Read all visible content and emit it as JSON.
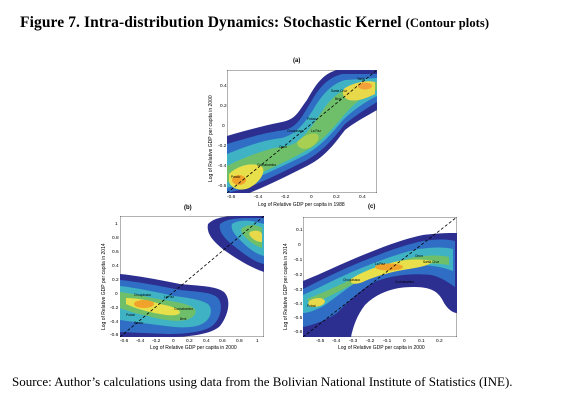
{
  "figure": {
    "title_main": "Figure 7. Intra-distribution Dynamics: Stochastic Kernel",
    "title_paren": "(Contour plots)",
    "source": "Source: Author’s calculations using data from the Bolivian National Institute of Statistics (INE)."
  },
  "panels": [
    {
      "label": "(a)",
      "xlabel": "Log of Relative GDP per capita in 1988",
      "ylabel": "Log of Relative GDP per capita in 2000",
      "xticks": [
        "-0.6",
        "-0.4",
        "-0.2",
        "0",
        "0.2",
        "0.4"
      ],
      "yticks": [
        "0.4",
        "0.2",
        "0",
        "-0.2",
        "-0.4",
        "-0.6"
      ],
      "regions": [
        "Tarija",
        "Santa Cruz",
        "Beni",
        "Potosí",
        "Chuquisaca",
        "La Paz",
        "Pando",
        "Oruro",
        "Cochabamba"
      ]
    },
    {
      "label": "(b)",
      "xlabel": "Log of Relative GDP per capita in 2000",
      "ylabel": "Log of Relative GDP per capita in 2014",
      "xticks": [
        "-0.6",
        "-0.4",
        "-0.2",
        "0",
        "0.2",
        "0.4",
        "0.6",
        "0.8",
        "1"
      ],
      "yticks": [
        "1",
        "0.8",
        "0.6",
        "0.4",
        "0.2",
        "0",
        "-0.2",
        "-0.4",
        "-0.6"
      ],
      "regions": [
        "Chuquisaca",
        "La Paz",
        "Cochabamba",
        "Potosí",
        "Pando",
        "Beni"
      ]
    },
    {
      "label": "(c)",
      "xlabel": "Log of Relative GDP per capita in 2000",
      "ylabel": "Log of Relative GDP per capita in 2014",
      "xticks": [
        "-0.5",
        "-0.4",
        "-0.3",
        "-0.2",
        "-0.1",
        "0",
        "0.1",
        "0.2"
      ],
      "yticks": [
        "0.1",
        "0",
        "-0.1",
        "-0.2",
        "-0.3",
        "-0.4",
        "-0.5",
        "-0.6"
      ],
      "regions": [
        "Oruro",
        "Santa Cruz",
        "La Paz",
        "Chuquisaca",
        "Cochabamba",
        "Potosí"
      ]
    }
  ]
}
